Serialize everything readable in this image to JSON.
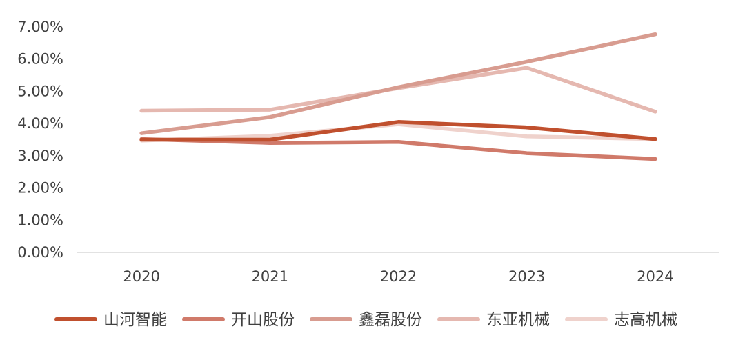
{
  "chart_data": {
    "type": "line",
    "x": [
      "2020",
      "2021",
      "2022",
      "2023",
      "2024"
    ],
    "ylim": [
      0,
      7
    ],
    "yticks": [
      "0.00%",
      "1.00%",
      "2.00%",
      "3.00%",
      "4.00%",
      "5.00%",
      "6.00%",
      "7.00%"
    ],
    "grid": false,
    "legend": "bottom",
    "series": [
      {
        "name": "山河智能",
        "color": "#c0502e",
        "values": [
          3.5,
          3.5,
          4.05,
          3.88,
          3.52
        ]
      },
      {
        "name": "开山股份",
        "color": "#d07a6a",
        "values": [
          3.52,
          3.4,
          3.43,
          3.08,
          2.9
        ]
      },
      {
        "name": "鑫磊股份",
        "color": "#d89c90",
        "values": [
          3.7,
          4.2,
          5.13,
          5.92,
          6.77
        ]
      },
      {
        "name": "东亚机械",
        "color": "#e5b8b0",
        "values": [
          4.4,
          4.43,
          5.1,
          5.73,
          4.37
        ]
      },
      {
        "name": "志高机械",
        "color": "#efd2cc",
        "values": [
          3.47,
          3.62,
          3.98,
          3.6,
          3.52
        ]
      }
    ]
  }
}
